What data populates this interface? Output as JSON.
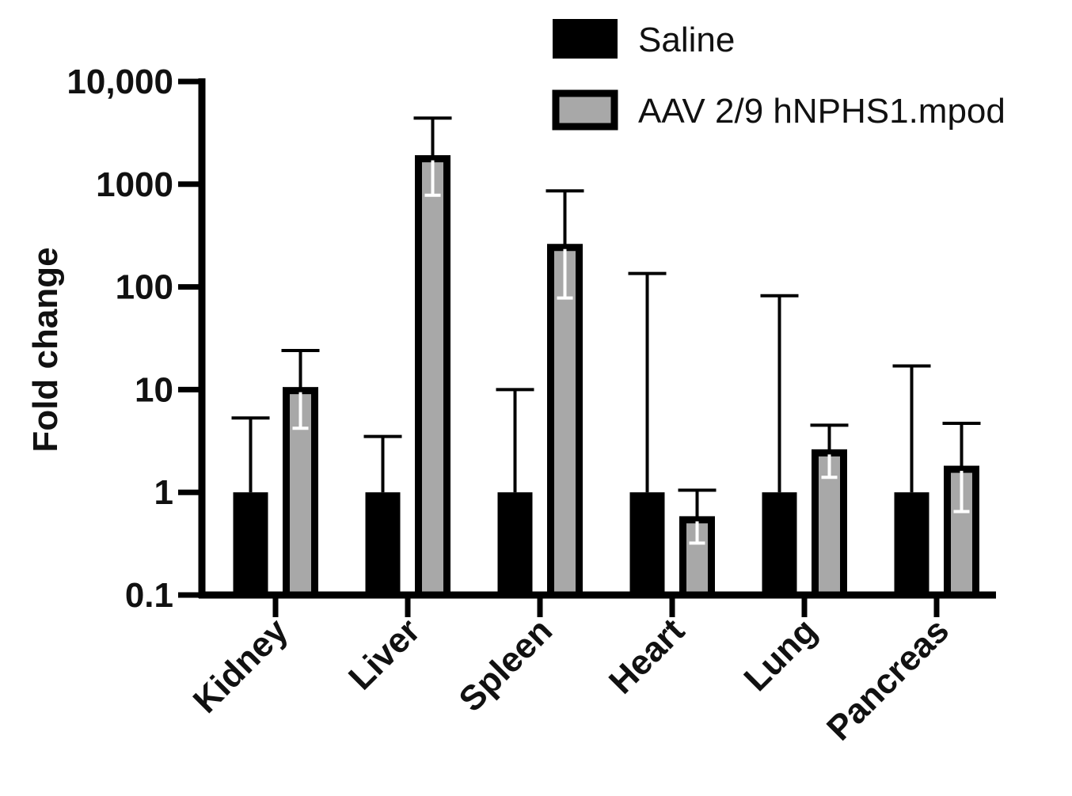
{
  "chart_data": {
    "type": "bar",
    "yscale": "log",
    "ylim": [
      0.1,
      10000
    ],
    "ylabel": "Fold change",
    "xlabel": "",
    "yticks": [
      {
        "value": 0.1,
        "label": "0.1"
      },
      {
        "value": 1,
        "label": "1"
      },
      {
        "value": 10,
        "label": "10"
      },
      {
        "value": 100,
        "label": "100"
      },
      {
        "value": 1000,
        "label": "1000"
      },
      {
        "value": 10000,
        "label": "10,000"
      }
    ],
    "categories": [
      "Kidney",
      "Liver",
      "Spleen",
      "Heart",
      "Lung",
      "Pancreas"
    ],
    "series": [
      {
        "name": "Saline",
        "color": "#000000",
        "values": [
          1,
          1,
          1,
          1,
          1,
          1
        ],
        "error_upper": [
          5.3,
          3.5,
          10,
          135,
          82,
          17
        ]
      },
      {
        "name": "AAV 2/9 hNPHS1.mpod",
        "color": "#a8a8a8",
        "values": [
          10.5,
          1900,
          260,
          0.58,
          2.6,
          1.8
        ],
        "error_upper": [
          24,
          4400,
          860,
          1.05,
          4.5,
          4.7
        ],
        "error_lower": [
          4.2,
          780,
          78,
          0.32,
          1.4,
          0.65
        ]
      }
    ],
    "legend_position": "top-right",
    "grid": false
  }
}
